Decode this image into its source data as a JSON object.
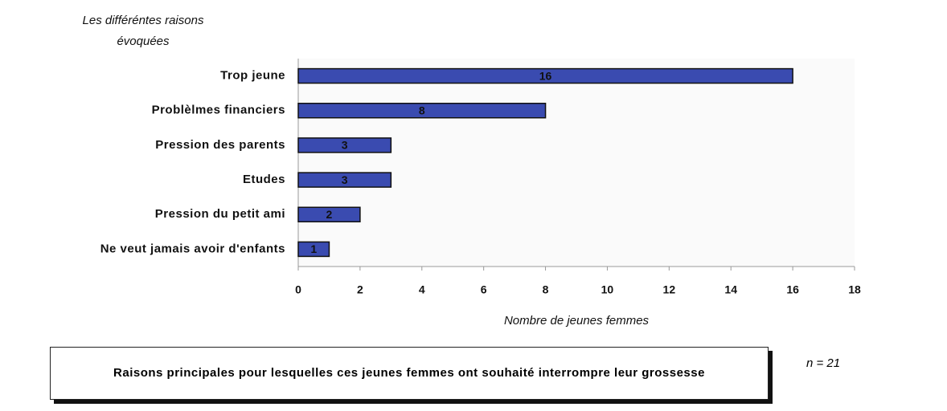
{
  "chart_data": {
    "type": "bar",
    "orientation": "horizontal",
    "ylabel": [
      "Les différéntes raisons",
      "évoquées"
    ],
    "xlabel": "Nombre de jeunes femmes",
    "categories": [
      "Trop jeune",
      "Problèlmes financiers",
      "Pression des parents",
      "Etudes",
      "Pression du petit ami",
      "Ne veut jamais avoir d'enfants"
    ],
    "values": [
      16,
      8,
      3,
      3,
      2,
      1
    ],
    "color": "#3a4bb0",
    "xlim": [
      0,
      18
    ],
    "xticks": [
      0,
      2,
      4,
      6,
      8,
      10,
      12,
      14,
      16,
      18
    ],
    "grid": false
  },
  "caption": "Raisons principales pour lesquelles ces jeunes femmes ont souhaité interrompre leur grossesse",
  "note": "n = 21"
}
